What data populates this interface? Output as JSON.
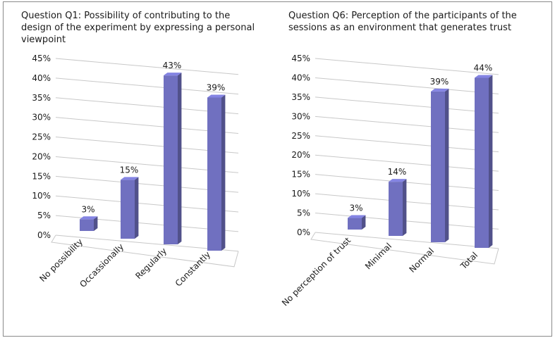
{
  "chart_data": [
    {
      "type": "bar",
      "title_lines": [
        "Question Q1: Possibility of contributing to the",
        "design of the experiment by expressing a personal",
        "viewpoint"
      ],
      "categories": [
        "No possibility",
        "Occassionally",
        "Regularly",
        "Constantly"
      ],
      "values": [
        3,
        15,
        43,
        39
      ],
      "data_labels": [
        "3%",
        "15%",
        "43%",
        "39%"
      ],
      "yticks": [
        "0%",
        "5%",
        "10%",
        "15%",
        "20%",
        "25%",
        "30%",
        "35%",
        "40%",
        "45%"
      ],
      "ylim": [
        0,
        45
      ],
      "grid": true,
      "bar_color": "#7070c0"
    },
    {
      "type": "bar",
      "title_lines": [
        "Question Q6: Perception of the participants of the",
        "sessions as an environment that generates trust"
      ],
      "categories": [
        "No perception of trust",
        "Minimal",
        "Normal",
        "Total"
      ],
      "values": [
        3,
        14,
        39,
        44
      ],
      "data_labels": [
        "3%",
        "14%",
        "39%",
        "44%"
      ],
      "yticks": [
        "0%",
        "5%",
        "10%",
        "15%",
        "20%",
        "25%",
        "30%",
        "35%",
        "40%",
        "45%"
      ],
      "ylim": [
        0,
        45
      ],
      "grid": true,
      "bar_color": "#7070c0"
    }
  ]
}
